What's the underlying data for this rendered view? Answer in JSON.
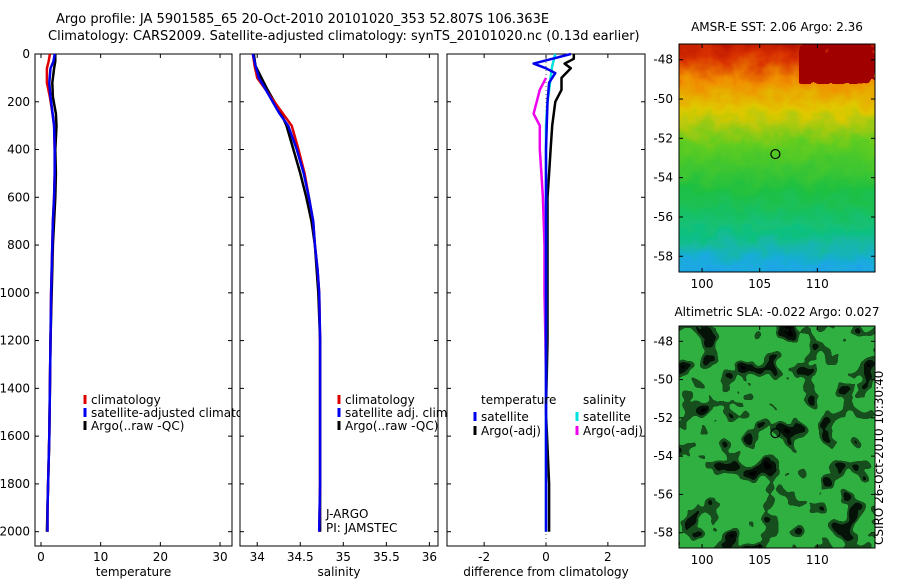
{
  "titles": {
    "line1": "Argo profile: JA 5901585_65 20-Oct-2010 20101020_353 52.807S 106.363E",
    "line2": "Climatology: CARS2009. Satellite-adjusted climatology: synTS_20101020.nc (0.13d earlier)"
  },
  "credit": "CSIRO 26-Oct-2010 10:30:40",
  "colors": {
    "clim": "#dd0000",
    "sat": "#0000ee",
    "argo": "#000000",
    "cyan": "#00e0e0",
    "magenta": "#ee00ee"
  },
  "chart_data": [
    {
      "type": "line",
      "xlabel": "temperature",
      "xlim": [
        -1,
        32
      ],
      "ylim": [
        0,
        2060
      ],
      "xticks": [
        0,
        10,
        20,
        30
      ],
      "yticks": [
        0,
        200,
        400,
        600,
        800,
        1000,
        1200,
        1400,
        1600,
        1800,
        2000
      ],
      "legend": {
        "items": [
          "climatology",
          "satellite-adjusted climatology",
          "Argo(..raw -QC)"
        ]
      },
      "series": [
        {
          "name": "climatology",
          "color": "clim",
          "x": [
            1.5,
            1.3,
            1.0,
            1.0,
            1.5,
            2.0,
            2.2,
            2.3,
            2.3,
            2.2,
            2.0,
            1.9,
            1.8,
            1.7,
            1.6,
            1.5,
            1.4,
            1.3,
            1.2,
            1.1,
            1.1
          ],
          "y": [
            0,
            30,
            60,
            120,
            180,
            260,
            300,
            400,
            500,
            600,
            700,
            800,
            900,
            1000,
            1200,
            1400,
            1600,
            1700,
            1800,
            1900,
            2000
          ]
        },
        {
          "name": "satellite-adjusted climatology",
          "color": "sat",
          "x": [
            2.3,
            2.1,
            1.6,
            1.4,
            1.6,
            2.0,
            2.2,
            2.3,
            2.3,
            2.2,
            2.0,
            1.9,
            1.8,
            1.7,
            1.6,
            1.5,
            1.4,
            1.3,
            1.2,
            1.1,
            1.1
          ],
          "y": [
            0,
            30,
            60,
            120,
            180,
            260,
            300,
            400,
            500,
            600,
            700,
            800,
            900,
            1000,
            1200,
            1400,
            1600,
            1700,
            1800,
            1900,
            2000
          ]
        },
        {
          "name": "Argo(..raw -QC)",
          "color": "argo",
          "x": [
            2.4,
            2.4,
            2.2,
            1.9,
            2.0,
            2.5,
            2.6,
            2.4,
            2.5,
            2.4,
            2.2,
            2.0,
            1.9,
            1.8,
            1.6,
            1.5,
            1.4,
            1.3,
            1.2,
            1.1,
            1.0
          ],
          "y": [
            0,
            30,
            60,
            120,
            180,
            250,
            300,
            400,
            500,
            600,
            700,
            800,
            900,
            1000,
            1200,
            1400,
            1600,
            1700,
            1800,
            1900,
            2000
          ]
        }
      ]
    },
    {
      "type": "line",
      "xlabel": "salinity",
      "xlim": [
        33.8,
        36.1
      ],
      "ylim": [
        0,
        2060
      ],
      "xticks": [
        34,
        34.5,
        35,
        35.5,
        36
      ],
      "legend": {
        "items": [
          "climatology",
          "satellite adj. clim.",
          "Argo(..raw -QC)"
        ]
      },
      "annotation": [
        "J-ARGO",
        "PI: JAMSTEC"
      ],
      "series": [
        {
          "name": "climatology",
          "color": "clim",
          "x": [
            33.95,
            33.97,
            34.0,
            34.1,
            34.2,
            34.3,
            34.4,
            34.48,
            34.55,
            34.6,
            34.65,
            34.67,
            34.7,
            34.72,
            34.73,
            34.73,
            34.73,
            34.73,
            34.72
          ],
          "y": [
            0,
            50,
            100,
            150,
            200,
            250,
            300,
            400,
            500,
            600,
            700,
            800,
            900,
            1000,
            1200,
            1400,
            1600,
            1800,
            2000
          ]
        },
        {
          "name": "satellite adj. clim.",
          "color": "sat",
          "x": [
            33.95,
            33.98,
            34.02,
            34.1,
            34.18,
            34.26,
            34.36,
            34.46,
            34.54,
            34.6,
            34.65,
            34.67,
            34.7,
            34.72,
            34.73,
            34.73,
            34.73,
            34.73,
            34.72
          ],
          "y": [
            0,
            50,
            100,
            150,
            200,
            250,
            300,
            400,
            500,
            600,
            700,
            800,
            900,
            1000,
            1200,
            1400,
            1600,
            1800,
            2000
          ]
        },
        {
          "name": "Argo(..raw -QC)",
          "color": "argo",
          "x": [
            33.96,
            33.98,
            34.05,
            34.12,
            34.2,
            34.28,
            34.34,
            34.42,
            34.5,
            34.57,
            34.63,
            34.67,
            34.69,
            34.71,
            34.73,
            34.73,
            34.73,
            34.73,
            34.73
          ],
          "y": [
            0,
            50,
            100,
            150,
            200,
            250,
            300,
            400,
            500,
            600,
            700,
            800,
            900,
            1000,
            1200,
            1400,
            1600,
            1800,
            2000
          ]
        }
      ]
    },
    {
      "type": "line",
      "xlabel": "difference from climatology",
      "xlim": [
        -3.2,
        3.2
      ],
      "ylim": [
        0,
        2060
      ],
      "xticks": [
        -2,
        0,
        2
      ],
      "legend": {
        "group1": "temperature",
        "group2": "salinity",
        "items": [
          "satellite",
          "Argo(-adj)",
          "satellite",
          "Argo(-adj)"
        ]
      },
      "series": [
        {
          "name": "temperature satellite",
          "color": "sat",
          "x": [
            0.8,
            0.2,
            -0.4,
            0.0,
            0.3,
            0.1,
            0.05,
            0.0,
            0.0,
            0.0,
            0.0,
            0.0,
            0.0,
            0.0,
            0.0,
            0.0,
            0.0
          ],
          "y": [
            0,
            20,
            40,
            60,
            80,
            120,
            200,
            400,
            600,
            800,
            1000,
            1200,
            1400,
            1600,
            1800,
            1900,
            2000
          ]
        },
        {
          "name": "temperature Argo(-adj)",
          "color": "argo",
          "x": [
            0.9,
            0.9,
            0.6,
            0.8,
            0.5,
            0.5,
            0.3,
            0.2,
            0.15,
            0.1,
            0.05,
            0.05,
            0.05,
            0.05,
            0.0,
            0.1,
            0.1
          ],
          "y": [
            0,
            20,
            40,
            60,
            100,
            150,
            200,
            300,
            400,
            500,
            600,
            800,
            1000,
            1200,
            1500,
            1800,
            2000
          ]
        },
        {
          "name": "salinity satellite",
          "color": "cyan",
          "x": [
            0.3,
            0.2,
            0.15,
            0.1,
            0.05,
            0.0,
            0.0,
            0.0,
            0.0,
            0.0,
            0.0,
            0.0,
            0.0,
            0.0,
            0.0,
            0.0
          ],
          "y": [
            0,
            50,
            100,
            150,
            200,
            300,
            400,
            600,
            800,
            1000,
            1200,
            1400,
            1600,
            1800,
            1900,
            2000
          ]
        },
        {
          "name": "salinity Argo(-adj)",
          "color": "magenta",
          "x": [
            0.0,
            -0.2,
            -0.3,
            -0.4,
            -0.2,
            -0.2,
            -0.15,
            -0.1,
            -0.05,
            -0.05,
            -0.02,
            0.0,
            0.0
          ],
          "y": [
            100,
            150,
            200,
            250,
            300,
            400,
            500,
            600,
            800,
            1000,
            1200,
            1400,
            1500
          ]
        }
      ]
    }
  ],
  "maps": [
    {
      "title": "AMSR-E SST: 2.06 Argo: 2.36",
      "yticks": [
        -48,
        -50,
        -52,
        -54,
        -56,
        -58
      ],
      "xticks": [
        100,
        105,
        110
      ],
      "lonlim": [
        98,
        115
      ],
      "latlim": [
        -58.8,
        -47.2
      ],
      "marker": {
        "lon": 106.36,
        "lat": -52.8
      }
    },
    {
      "title": "Altimetric SLA: -0.022 Argo: 0.027",
      "yticks": [
        -48,
        -50,
        -52,
        -54,
        -56,
        -58
      ],
      "xticks": [
        100,
        105,
        110
      ],
      "lonlim": [
        98,
        115
      ],
      "latlim": [
        -58.8,
        -47.2
      ],
      "marker": {
        "lon": 106.36,
        "lat": -52.8
      }
    }
  ]
}
